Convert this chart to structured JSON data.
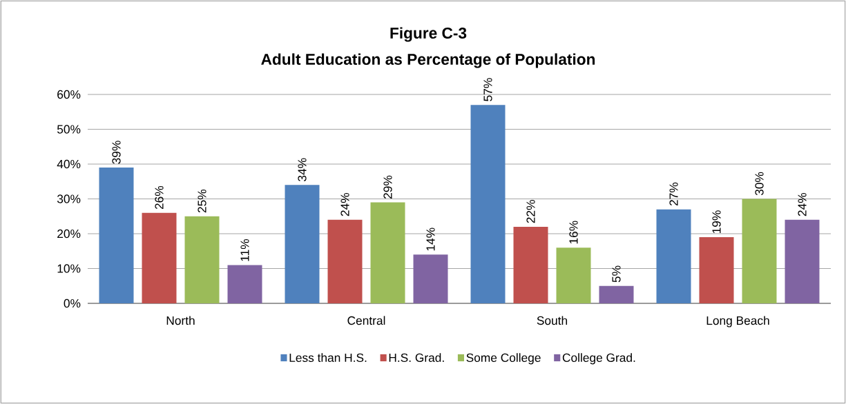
{
  "chart_data": {
    "type": "bar",
    "title": "Figure C-3",
    "subtitle": "Adult Education as Percentage of Population",
    "categories": [
      "North",
      "Central",
      "South",
      "Long Beach"
    ],
    "series": [
      {
        "name": "Less than H.S.",
        "color": "#4f81bd",
        "values": [
          39,
          34,
          57,
          27
        ],
        "value_labels": [
          "39%",
          "34%",
          "57%",
          "27%"
        ]
      },
      {
        "name": "H.S. Grad.",
        "color": "#c0504d",
        "values": [
          26,
          24,
          22,
          19
        ],
        "value_labels": [
          "26%",
          "24%",
          "22%",
          "19%"
        ]
      },
      {
        "name": "Some College",
        "color": "#9bbb59",
        "values": [
          25,
          29,
          16,
          30
        ],
        "value_labels": [
          "25%",
          "29%",
          "16%",
          "30%"
        ]
      },
      {
        "name": "College Grad.",
        "color": "#8064a2",
        "values": [
          11,
          14,
          5,
          24
        ],
        "value_labels": [
          "11%",
          "14%",
          "5%",
          "24%"
        ]
      }
    ],
    "ylim": [
      0,
      60
    ],
    "yticks": [
      {
        "value": 0,
        "label": "0%"
      },
      {
        "value": 10,
        "label": "10%"
      },
      {
        "value": 20,
        "label": "20%"
      },
      {
        "value": 30,
        "label": "30%"
      },
      {
        "value": 40,
        "label": "40%"
      },
      {
        "value": 50,
        "label": "50%"
      },
      {
        "value": 60,
        "label": "60%"
      }
    ],
    "grid": "y",
    "legend": "bottom"
  }
}
